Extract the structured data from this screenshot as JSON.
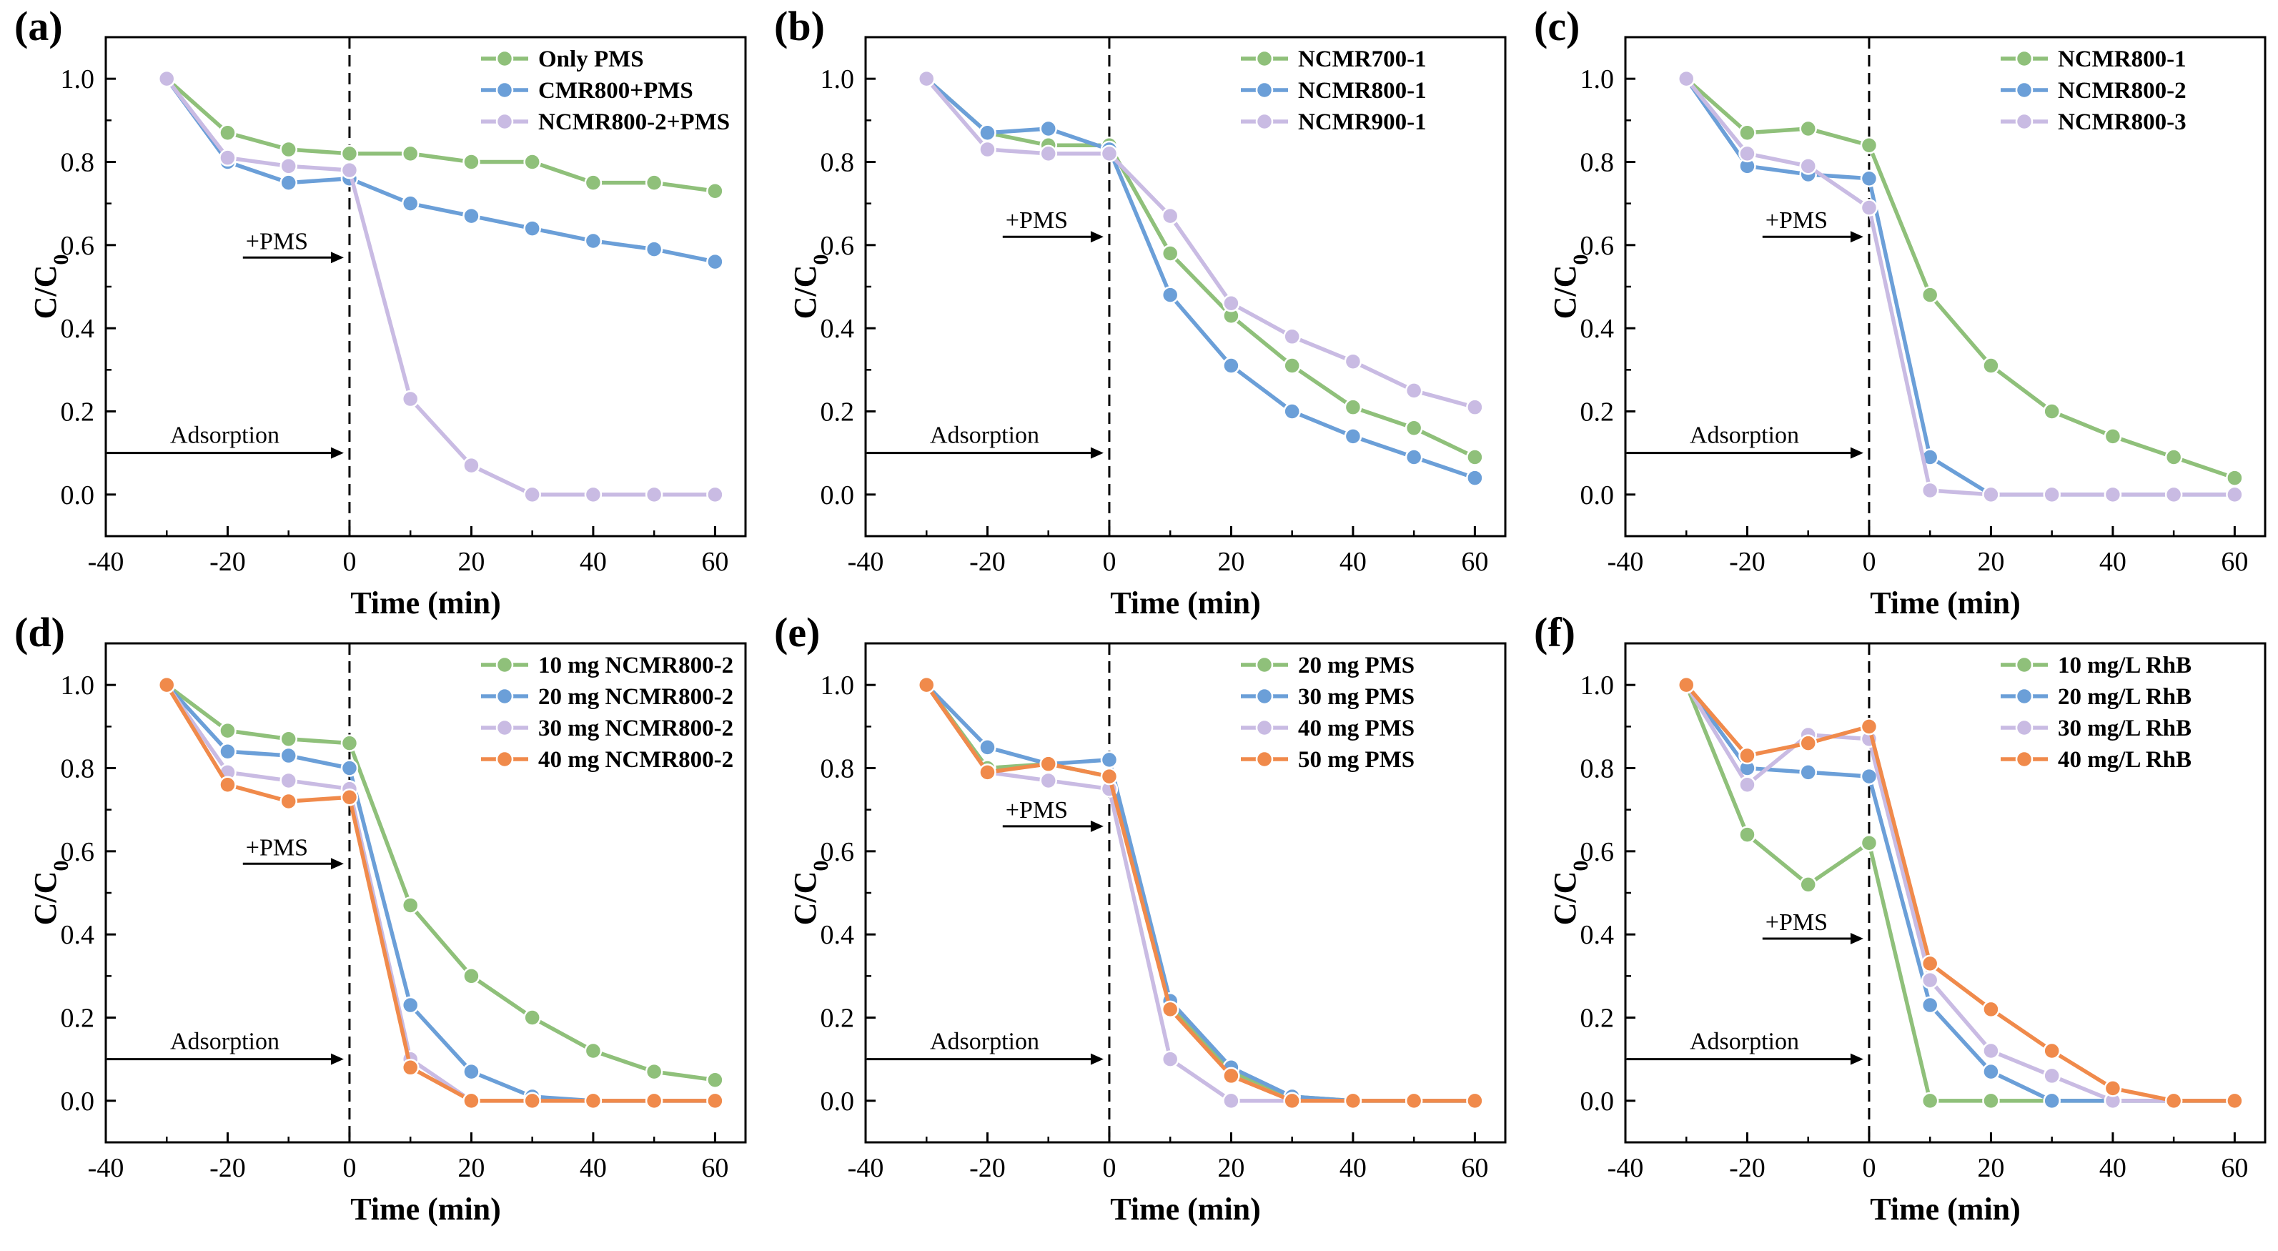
{
  "figure": {
    "colors": {
      "green": "#8fc07a",
      "blue": "#6b9fd8",
      "lavender": "#c9bbe3",
      "orange": "#f08a4b",
      "axis": "#000000"
    }
  },
  "chart_data": [
    {
      "panel_label": "(a)",
      "type": "line",
      "xlabel": "Time (min)",
      "ylabel": "C/C0",
      "xlim": [
        -40,
        65
      ],
      "ylim": [
        -0.1,
        1.1
      ],
      "x_ticks": [
        "-40",
        "-20",
        "0",
        "20",
        "40",
        "60"
      ],
      "y_ticks": [
        "0.0",
        "0.2",
        "0.4",
        "0.6",
        "0.8",
        "1.0"
      ],
      "x": [
        -30,
        -20,
        -10,
        0,
        10,
        20,
        30,
        40,
        50,
        60
      ],
      "legend_position": "top-right",
      "annotations": {
        "pms": "+PMS",
        "adsorption": "Adsorption",
        "pms_y": 0.57,
        "adsorption_y": 0.1
      },
      "series": [
        {
          "name": "Only PMS",
          "color": "#8fc07a",
          "values": [
            1.0,
            0.87,
            0.83,
            0.82,
            0.82,
            0.8,
            0.8,
            0.75,
            0.75,
            0.73
          ]
        },
        {
          "name": "CMR800+PMS",
          "color": "#6b9fd8",
          "values": [
            1.0,
            0.8,
            0.75,
            0.76,
            0.7,
            0.67,
            0.64,
            0.61,
            0.59,
            0.56
          ]
        },
        {
          "name": "NCMR800-2+PMS",
          "color": "#c9bbe3",
          "values": [
            1.0,
            0.81,
            0.79,
            0.78,
            0.23,
            0.07,
            0.0,
            0.0,
            0.0,
            0.0
          ]
        }
      ]
    },
    {
      "panel_label": "(b)",
      "type": "line",
      "xlabel": "Time (min)",
      "ylabel": "C/C0",
      "xlim": [
        -40,
        65
      ],
      "ylim": [
        -0.1,
        1.1
      ],
      "x_ticks": [
        "-40",
        "-20",
        "0",
        "20",
        "40",
        "60"
      ],
      "y_ticks": [
        "0.0",
        "0.2",
        "0.4",
        "0.6",
        "0.8",
        "1.0"
      ],
      "x": [
        -30,
        -20,
        -10,
        0,
        10,
        20,
        30,
        40,
        50,
        60
      ],
      "legend_position": "top-right",
      "annotations": {
        "pms": "+PMS",
        "adsorption": "Adsorption",
        "pms_y": 0.62,
        "adsorption_y": 0.1
      },
      "series": [
        {
          "name": "NCMR700-1",
          "color": "#8fc07a",
          "values": [
            1.0,
            0.87,
            0.84,
            0.84,
            0.58,
            0.43,
            0.31,
            0.21,
            0.16,
            0.09
          ]
        },
        {
          "name": "NCMR800-1",
          "color": "#6b9fd8",
          "values": [
            1.0,
            0.87,
            0.88,
            0.83,
            0.48,
            0.31,
            0.2,
            0.14,
            0.09,
            0.04
          ]
        },
        {
          "name": "NCMR900-1",
          "color": "#c9bbe3",
          "values": [
            1.0,
            0.83,
            0.82,
            0.82,
            0.67,
            0.46,
            0.38,
            0.32,
            0.25,
            0.21
          ]
        }
      ]
    },
    {
      "panel_label": "(c)",
      "type": "line",
      "xlabel": "Time (min)",
      "ylabel": "C/C0",
      "xlim": [
        -40,
        65
      ],
      "ylim": [
        -0.1,
        1.1
      ],
      "x_ticks": [
        "-40",
        "-20",
        "0",
        "20",
        "40",
        "60"
      ],
      "y_ticks": [
        "0.0",
        "0.2",
        "0.4",
        "0.6",
        "0.8",
        "1.0"
      ],
      "x": [
        -30,
        -20,
        -10,
        0,
        10,
        20,
        30,
        40,
        50,
        60
      ],
      "legend_position": "top-right",
      "annotations": {
        "pms": "+PMS",
        "adsorption": "Adsorption",
        "pms_y": 0.62,
        "adsorption_y": 0.1
      },
      "series": [
        {
          "name": "NCMR800-1",
          "color": "#8fc07a",
          "values": [
            1.0,
            0.87,
            0.88,
            0.84,
            0.48,
            0.31,
            0.2,
            0.14,
            0.09,
            0.04
          ]
        },
        {
          "name": "NCMR800-2",
          "color": "#6b9fd8",
          "values": [
            1.0,
            0.79,
            0.77,
            0.76,
            0.09,
            0.0,
            0.0,
            0.0,
            0.0,
            0.0
          ]
        },
        {
          "name": "NCMR800-3",
          "color": "#c9bbe3",
          "values": [
            1.0,
            0.82,
            0.79,
            0.69,
            0.01,
            0.0,
            0.0,
            0.0,
            0.0,
            0.0
          ]
        }
      ]
    },
    {
      "panel_label": "(d)",
      "type": "line",
      "xlabel": "Time (min)",
      "ylabel": "C/C0",
      "xlim": [
        -40,
        65
      ],
      "ylim": [
        -0.1,
        1.1
      ],
      "x_ticks": [
        "-40",
        "-20",
        "0",
        "20",
        "40",
        "60"
      ],
      "y_ticks": [
        "0.0",
        "0.2",
        "0.4",
        "0.6",
        "0.8",
        "1.0"
      ],
      "x": [
        -30,
        -20,
        -10,
        0,
        10,
        20,
        30,
        40,
        50,
        60
      ],
      "legend_position": "top-right",
      "annotations": {
        "pms": "+PMS",
        "adsorption": "Adsorption",
        "pms_y": 0.57,
        "adsorption_y": 0.1
      },
      "series": [
        {
          "name": "10 mg NCMR800-2",
          "color": "#8fc07a",
          "values": [
            1.0,
            0.89,
            0.87,
            0.86,
            0.47,
            0.3,
            0.2,
            0.12,
            0.07,
            0.05
          ]
        },
        {
          "name": "20 mg NCMR800-2",
          "color": "#6b9fd8",
          "values": [
            1.0,
            0.84,
            0.83,
            0.8,
            0.23,
            0.07,
            0.01,
            0.0,
            0.0,
            0.0
          ]
        },
        {
          "name": "30 mg NCMR800-2",
          "color": "#c9bbe3",
          "values": [
            1.0,
            0.79,
            0.77,
            0.75,
            0.1,
            0.0,
            0.0,
            0.0,
            0.0,
            0.0
          ]
        },
        {
          "name": "40 mg NCMR800-2",
          "color": "#f08a4b",
          "values": [
            1.0,
            0.76,
            0.72,
            0.73,
            0.08,
            0.0,
            0.0,
            0.0,
            0.0,
            0.0
          ]
        }
      ]
    },
    {
      "panel_label": "(e)",
      "type": "line",
      "xlabel": "Time (min)",
      "ylabel": "C/C0",
      "xlim": [
        -40,
        65
      ],
      "ylim": [
        -0.1,
        1.1
      ],
      "x_ticks": [
        "-40",
        "-20",
        "0",
        "20",
        "40",
        "60"
      ],
      "y_ticks": [
        "0.0",
        "0.2",
        "0.4",
        "0.6",
        "0.8",
        "1.0"
      ],
      "x": [
        -30,
        -20,
        -10,
        0,
        10,
        20,
        30,
        40,
        50,
        60
      ],
      "legend_position": "top-right",
      "annotations": {
        "pms": "+PMS",
        "adsorption": "Adsorption",
        "pms_y": 0.66,
        "adsorption_y": 0.1
      },
      "series": [
        {
          "name": "20 mg PMS",
          "color": "#8fc07a",
          "values": [
            1.0,
            0.8,
            0.81,
            0.78,
            0.23,
            0.07,
            0.01,
            0.0,
            0.0,
            0.0
          ]
        },
        {
          "name": "30 mg PMS",
          "color": "#6b9fd8",
          "values": [
            1.0,
            0.85,
            0.81,
            0.82,
            0.24,
            0.08,
            0.01,
            0.0,
            0.0,
            0.0
          ]
        },
        {
          "name": "40 mg PMS",
          "color": "#c9bbe3",
          "values": [
            1.0,
            0.79,
            0.77,
            0.75,
            0.1,
            0.0,
            0.0,
            0.0,
            0.0,
            0.0
          ]
        },
        {
          "name": "50 mg PMS",
          "color": "#f08a4b",
          "values": [
            1.0,
            0.79,
            0.81,
            0.78,
            0.22,
            0.06,
            0.0,
            0.0,
            0.0,
            0.0
          ]
        }
      ]
    },
    {
      "panel_label": "(f)",
      "type": "line",
      "xlabel": "Time (min)",
      "ylabel": "C/C0",
      "xlim": [
        -40,
        65
      ],
      "ylim": [
        -0.1,
        1.1
      ],
      "x_ticks": [
        "-40",
        "-20",
        "0",
        "20",
        "40",
        "60"
      ],
      "y_ticks": [
        "0.0",
        "0.2",
        "0.4",
        "0.6",
        "0.8",
        "1.0"
      ],
      "x": [
        -30,
        -20,
        -10,
        0,
        10,
        20,
        30,
        40,
        50,
        60
      ],
      "legend_position": "top-right",
      "annotations": {
        "pms": "+PMS",
        "adsorption": "Adsorption",
        "pms_y": 0.39,
        "adsorption_y": 0.1
      },
      "series": [
        {
          "name": "10 mg/L RhB",
          "color": "#8fc07a",
          "values": [
            1.0,
            0.64,
            0.52,
            0.62,
            0.0,
            0.0,
            0.0,
            0.0,
            0.0,
            0.0
          ]
        },
        {
          "name": "20 mg/L RhB",
          "color": "#6b9fd8",
          "values": [
            1.0,
            0.8,
            0.79,
            0.78,
            0.23,
            0.07,
            0.0,
            0.0,
            0.0,
            0.0
          ]
        },
        {
          "name": "30 mg/L RhB",
          "color": "#c9bbe3",
          "values": [
            1.0,
            0.76,
            0.88,
            0.87,
            0.29,
            0.12,
            0.06,
            0.0,
            0.0,
            0.0
          ]
        },
        {
          "name": "40 mg/L RhB",
          "color": "#f08a4b",
          "values": [
            1.0,
            0.83,
            0.86,
            0.9,
            0.33,
            0.22,
            0.12,
            0.03,
            0.0,
            0.0
          ]
        }
      ]
    }
  ]
}
